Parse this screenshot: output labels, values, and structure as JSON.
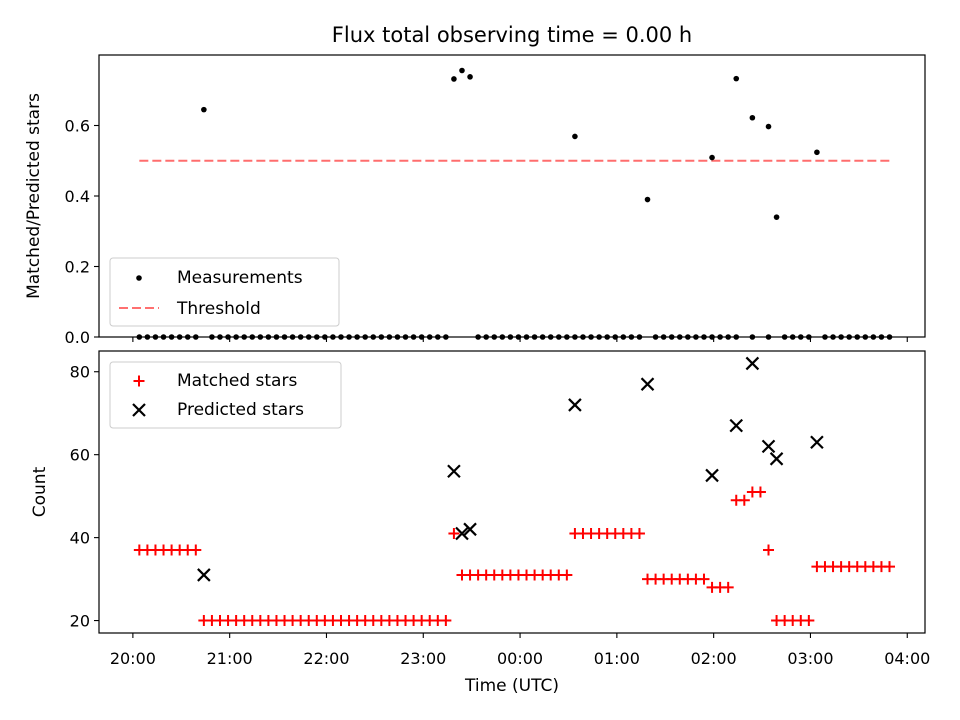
{
  "figure_title": "Flux total observing time = 0.00 h",
  "chart_data": [
    {
      "type": "scatter",
      "title": "Flux total observing time = 0.00 h",
      "xlabel": "",
      "ylabel": "Matched/Predicted stars",
      "ylim": [
        0,
        0.8
      ],
      "yticks": [
        0.0,
        0.2,
        0.4,
        0.6
      ],
      "ytick_labels": [
        "0.0",
        "0.2",
        "0.4",
        "0.6"
      ],
      "legend": {
        "placement": "lower-left",
        "entries": [
          {
            "label": "Measurements",
            "marker": "dot",
            "color": "#000000"
          },
          {
            "label": "Threshold",
            "marker": "dashed-line",
            "color": "#ff7070"
          }
        ]
      },
      "threshold": {
        "y": 0.5,
        "x_start": "20:04",
        "x_end": "03:50",
        "color": "#ff6666"
      },
      "measurements": [
        [
          "20:04",
          0
        ],
        [
          "20:09",
          0
        ],
        [
          "20:14",
          0
        ],
        [
          "20:19",
          0
        ],
        [
          "20:24",
          0
        ],
        [
          "20:29",
          0
        ],
        [
          "20:34",
          0
        ],
        [
          "20:39",
          0
        ],
        [
          "20:44",
          0.645
        ],
        [
          "20:49",
          0
        ],
        [
          "20:54",
          0
        ],
        [
          "20:59",
          0
        ],
        [
          "21:04",
          0
        ],
        [
          "21:09",
          0
        ],
        [
          "21:14",
          0
        ],
        [
          "21:19",
          0
        ],
        [
          "21:24",
          0
        ],
        [
          "21:29",
          0
        ],
        [
          "21:34",
          0
        ],
        [
          "21:39",
          0
        ],
        [
          "21:44",
          0
        ],
        [
          "21:49",
          0
        ],
        [
          "21:54",
          0
        ],
        [
          "21:59",
          0
        ],
        [
          "22:04",
          0
        ],
        [
          "22:09",
          0
        ],
        [
          "22:14",
          0
        ],
        [
          "22:19",
          0
        ],
        [
          "22:24",
          0
        ],
        [
          "22:29",
          0
        ],
        [
          "22:34",
          0
        ],
        [
          "22:39",
          0
        ],
        [
          "22:44",
          0
        ],
        [
          "22:49",
          0
        ],
        [
          "22:54",
          0
        ],
        [
          "22:59",
          0
        ],
        [
          "23:04",
          0
        ],
        [
          "23:09",
          0
        ],
        [
          "23:14",
          0
        ],
        [
          "23:19",
          0.732
        ],
        [
          "23:24",
          0.756
        ],
        [
          "23:29",
          0.738
        ],
        [
          "23:34",
          0
        ],
        [
          "23:39",
          0
        ],
        [
          "23:44",
          0
        ],
        [
          "23:49",
          0
        ],
        [
          "23:54",
          0
        ],
        [
          "23:59",
          0
        ],
        [
          "00:04",
          0
        ],
        [
          "00:09",
          0
        ],
        [
          "00:14",
          0
        ],
        [
          "00:19",
          0
        ],
        [
          "00:24",
          0
        ],
        [
          "00:29",
          0
        ],
        [
          "00:34",
          0
        ],
        [
          "00:34",
          0.569
        ],
        [
          "00:39",
          0
        ],
        [
          "00:44",
          0
        ],
        [
          "00:49",
          0
        ],
        [
          "00:54",
          0
        ],
        [
          "00:59",
          0
        ],
        [
          "01:04",
          0
        ],
        [
          "01:09",
          0
        ],
        [
          "01:14",
          0
        ],
        [
          "01:19",
          0.39
        ],
        [
          "01:24",
          0
        ],
        [
          "01:29",
          0
        ],
        [
          "01:34",
          0
        ],
        [
          "01:39",
          0
        ],
        [
          "01:44",
          0
        ],
        [
          "01:49",
          0
        ],
        [
          "01:54",
          0
        ],
        [
          "01:59",
          0
        ],
        [
          "01:59",
          0.509
        ],
        [
          "02:04",
          0
        ],
        [
          "02:09",
          0
        ],
        [
          "02:14",
          0
        ],
        [
          "02:14",
          0.733
        ],
        [
          "02:24",
          0
        ],
        [
          "02:24",
          0.622
        ],
        [
          "02:34",
          0
        ],
        [
          "02:34",
          0.597
        ],
        [
          "02:39",
          0.34
        ],
        [
          "02:44",
          0
        ],
        [
          "02:49",
          0
        ],
        [
          "02:54",
          0
        ],
        [
          "02:59",
          0
        ],
        [
          "03:04",
          0.524
        ],
        [
          "03:09",
          0
        ],
        [
          "03:14",
          0
        ],
        [
          "03:19",
          0
        ],
        [
          "03:24",
          0
        ],
        [
          "03:29",
          0
        ],
        [
          "03:34",
          0
        ],
        [
          "03:39",
          0
        ],
        [
          "03:44",
          0
        ],
        [
          "03:49",
          0
        ]
      ]
    },
    {
      "type": "scatter",
      "title": "",
      "xlabel": "Time (UTC)",
      "ylabel": "Count",
      "ylim": [
        17,
        85
      ],
      "yticks": [
        20,
        40,
        60,
        80
      ],
      "ytick_labels": [
        "20",
        "40",
        "60",
        "80"
      ],
      "xticks": [
        "20:00",
        "21:00",
        "22:00",
        "23:00",
        "00:00",
        "01:00",
        "02:00",
        "03:00",
        "04:00"
      ],
      "xlim": [
        "19:39",
        "04:11"
      ],
      "legend": {
        "placement": "upper-left",
        "entries": [
          {
            "label": "Matched stars",
            "marker": "plus",
            "color": "#ff0000"
          },
          {
            "label": "Predicted stars",
            "marker": "x",
            "color": "#000000"
          }
        ]
      },
      "series": [
        {
          "name": "Matched stars",
          "color": "#ff0000",
          "points": [
            [
              "20:04",
              37
            ],
            [
              "20:09",
              37
            ],
            [
              "20:14",
              37
            ],
            [
              "20:19",
              37
            ],
            [
              "20:24",
              37
            ],
            [
              "20:29",
              37
            ],
            [
              "20:34",
              37
            ],
            [
              "20:39",
              37
            ],
            [
              "20:44",
              20
            ],
            [
              "20:49",
              20
            ],
            [
              "20:54",
              20
            ],
            [
              "20:59",
              20
            ],
            [
              "21:04",
              20
            ],
            [
              "21:09",
              20
            ],
            [
              "21:14",
              20
            ],
            [
              "21:19",
              20
            ],
            [
              "21:24",
              20
            ],
            [
              "21:29",
              20
            ],
            [
              "21:34",
              20
            ],
            [
              "21:39",
              20
            ],
            [
              "21:44",
              20
            ],
            [
              "21:49",
              20
            ],
            [
              "21:54",
              20
            ],
            [
              "21:59",
              20
            ],
            [
              "22:04",
              20
            ],
            [
              "22:09",
              20
            ],
            [
              "22:14",
              20
            ],
            [
              "22:19",
              20
            ],
            [
              "22:24",
              20
            ],
            [
              "22:29",
              20
            ],
            [
              "22:34",
              20
            ],
            [
              "22:39",
              20
            ],
            [
              "22:44",
              20
            ],
            [
              "22:49",
              20
            ],
            [
              "22:54",
              20
            ],
            [
              "22:59",
              20
            ],
            [
              "23:04",
              20
            ],
            [
              "23:09",
              20
            ],
            [
              "23:14",
              20
            ],
            [
              "23:19",
              41
            ],
            [
              "23:24",
              31
            ],
            [
              "23:29",
              31
            ],
            [
              "23:34",
              31
            ],
            [
              "23:39",
              31
            ],
            [
              "23:44",
              31
            ],
            [
              "23:49",
              31
            ],
            [
              "23:54",
              31
            ],
            [
              "23:59",
              31
            ],
            [
              "00:04",
              31
            ],
            [
              "00:09",
              31
            ],
            [
              "00:14",
              31
            ],
            [
              "00:19",
              31
            ],
            [
              "00:24",
              31
            ],
            [
              "00:29",
              31
            ],
            [
              "00:34",
              41
            ],
            [
              "00:39",
              41
            ],
            [
              "00:44",
              41
            ],
            [
              "00:49",
              41
            ],
            [
              "00:54",
              41
            ],
            [
              "00:59",
              41
            ],
            [
              "01:04",
              41
            ],
            [
              "01:09",
              41
            ],
            [
              "01:14",
              41
            ],
            [
              "01:19",
              30
            ],
            [
              "01:24",
              30
            ],
            [
              "01:29",
              30
            ],
            [
              "01:34",
              30
            ],
            [
              "01:39",
              30
            ],
            [
              "01:44",
              30
            ],
            [
              "01:49",
              30
            ],
            [
              "01:54",
              30
            ],
            [
              "01:59",
              28
            ],
            [
              "02:04",
              28
            ],
            [
              "02:09",
              28
            ],
            [
              "02:14",
              49
            ],
            [
              "02:19",
              49
            ],
            [
              "02:24",
              51
            ],
            [
              "02:29",
              51
            ],
            [
              "02:34",
              37
            ],
            [
              "02:39",
              20
            ],
            [
              "02:44",
              20
            ],
            [
              "02:49",
              20
            ],
            [
              "02:54",
              20
            ],
            [
              "02:59",
              20
            ],
            [
              "03:04",
              33
            ],
            [
              "03:09",
              33
            ],
            [
              "03:14",
              33
            ],
            [
              "03:19",
              33
            ],
            [
              "03:24",
              33
            ],
            [
              "03:29",
              33
            ],
            [
              "03:34",
              33
            ],
            [
              "03:39",
              33
            ],
            [
              "03:44",
              33
            ],
            [
              "03:49",
              33
            ]
          ]
        },
        {
          "name": "Predicted stars",
          "color": "#000000",
          "points": [
            [
              "20:44",
              31
            ],
            [
              "23:19",
              56
            ],
            [
              "23:24",
              41
            ],
            [
              "23:29",
              42
            ],
            [
              "00:34",
              72
            ],
            [
              "01:19",
              77
            ],
            [
              "01:59",
              55
            ],
            [
              "02:14",
              67
            ],
            [
              "02:24",
              82
            ],
            [
              "02:34",
              62
            ],
            [
              "02:39",
              59
            ],
            [
              "03:04",
              63
            ]
          ]
        }
      ]
    }
  ]
}
